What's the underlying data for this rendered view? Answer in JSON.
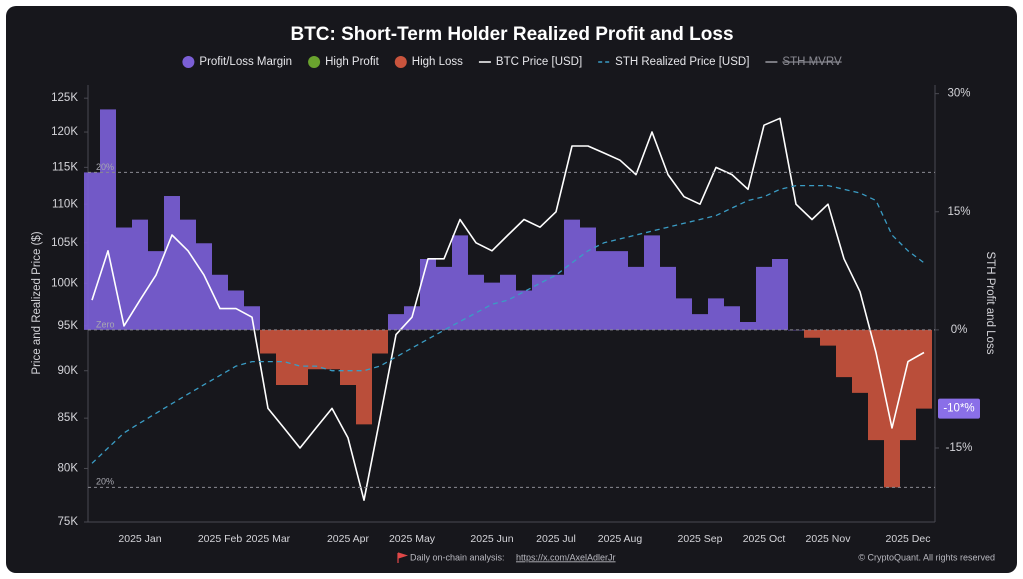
{
  "chart_data": {
    "type": "combo",
    "title": "BTC: Short-Term Holder Realized Profit and Loss",
    "y_label": "Price and Realized Price ($)",
    "y2_label": "STH Profit and Loss",
    "y_log": true,
    "ylim": [
      75000,
      127000
    ],
    "yticks": [
      {
        "value": 75000,
        "label": "75K"
      },
      {
        "value": 80000,
        "label": "80K"
      },
      {
        "value": 85000,
        "label": "85K"
      },
      {
        "value": 90000,
        "label": "90K"
      },
      {
        "value": 95000,
        "label": "95K"
      },
      {
        "value": 100000,
        "label": "100K"
      },
      {
        "value": 105000,
        "label": "105K"
      },
      {
        "value": 110000,
        "label": "110K"
      },
      {
        "value": 115000,
        "label": "115K"
      },
      {
        "value": 120000,
        "label": "120K"
      },
      {
        "value": 125000,
        "label": "125K"
      }
    ],
    "y2lim": [
      -24.4,
      31.1
    ],
    "y2ticks": [
      {
        "value": 30,
        "label": "30%"
      },
      {
        "value": 15,
        "label": "15%"
      },
      {
        "value": 0,
        "label": "0%"
      },
      {
        "value": -15,
        "label": "-15%"
      }
    ],
    "reference_lines": [
      {
        "value": 20,
        "label": "20%"
      },
      {
        "value": 0,
        "label": "Zero"
      },
      {
        "value": -20,
        "label": "20%"
      }
    ],
    "last_value": {
      "value": -10,
      "label": "-10*%"
    },
    "categories": [
      null,
      null,
      null,
      "2025 Jan",
      null,
      null,
      null,
      null,
      "2025 Feb",
      null,
      null,
      "2025 Mar",
      null,
      null,
      null,
      null,
      "2025 Apr",
      null,
      null,
      null,
      "2025 May",
      null,
      null,
      null,
      null,
      "2025 Jun",
      null,
      null,
      null,
      "2025 Jul",
      null,
      null,
      null,
      "2025 Aug",
      null,
      null,
      null,
      null,
      "2025 Sep",
      null,
      null,
      null,
      "2025 Oct",
      null,
      null,
      null,
      "2025 Nov",
      null,
      null,
      null,
      null,
      "2025 Dec",
      null
    ],
    "series": [
      {
        "name": "Profit/Loss Margin",
        "type": "bar",
        "axis": "y2",
        "color": "#7b5fd6",
        "negative_series": 2,
        "values": [
          20,
          28,
          13,
          14,
          10,
          17,
          14,
          11,
          7,
          5,
          3,
          -3,
          -7,
          -7,
          -5,
          -5,
          -7,
          -12,
          -3,
          2,
          3,
          9,
          8,
          12,
          7,
          6,
          7,
          5,
          7,
          7,
          14,
          13,
          10,
          10,
          8,
          12,
          8,
          4,
          2,
          4,
          3,
          1,
          8,
          9,
          0,
          -1,
          -2,
          -6,
          -8,
          -14,
          -20,
          -14,
          -10
        ]
      },
      {
        "name": "High Profit",
        "type": "marker",
        "color": "#6aa32e"
      },
      {
        "name": "High Loss",
        "type": "marker",
        "color": "#c9543d"
      },
      {
        "name": "BTC Price [USD]",
        "type": "line",
        "color": "#ffffff",
        "values": [
          98000,
          104000,
          95000,
          98000,
          101000,
          106000,
          104000,
          101000,
          97000,
          97000,
          96000,
          86000,
          84000,
          82000,
          84000,
          86000,
          83000,
          77000,
          85000,
          94000,
          96000,
          103000,
          103000,
          108000,
          105000,
          104000,
          106000,
          108000,
          107000,
          109000,
          118000,
          118000,
          117000,
          116000,
          114000,
          120000,
          114000,
          111000,
          110000,
          115000,
          114000,
          112000,
          121000,
          122000,
          110000,
          108000,
          110000,
          103000,
          99000,
          92000,
          84000,
          91000,
          92000
        ]
      },
      {
        "name": "STH Realized Price [USD]",
        "type": "line",
        "dashed": true,
        "color": "#3a9cc4",
        "values": [
          80500,
          82000,
          83500,
          84500,
          85500,
          86500,
          87500,
          88500,
          89500,
          90500,
          91000,
          91000,
          91000,
          90500,
          90500,
          90000,
          90000,
          90000,
          90500,
          91500,
          92500,
          93500,
          94500,
          95500,
          96500,
          97500,
          98000,
          99000,
          100000,
          101000,
          102500,
          104000,
          105000,
          105500,
          106000,
          106500,
          107000,
          107500,
          108000,
          108500,
          109500,
          110500,
          111000,
          112000,
          112500,
          112500,
          112500,
          112000,
          111500,
          110500,
          106000,
          104000,
          102500
        ]
      },
      {
        "name": "STH MVRV",
        "type": "line",
        "hidden": true,
        "color": "#9a9aa2"
      }
    ],
    "footer": {
      "text": "Daily on-chain analysis:",
      "link": "https://x.com/AxelAdlerJr",
      "copyright": "© CryptoQuant. All rights reserved"
    }
  }
}
